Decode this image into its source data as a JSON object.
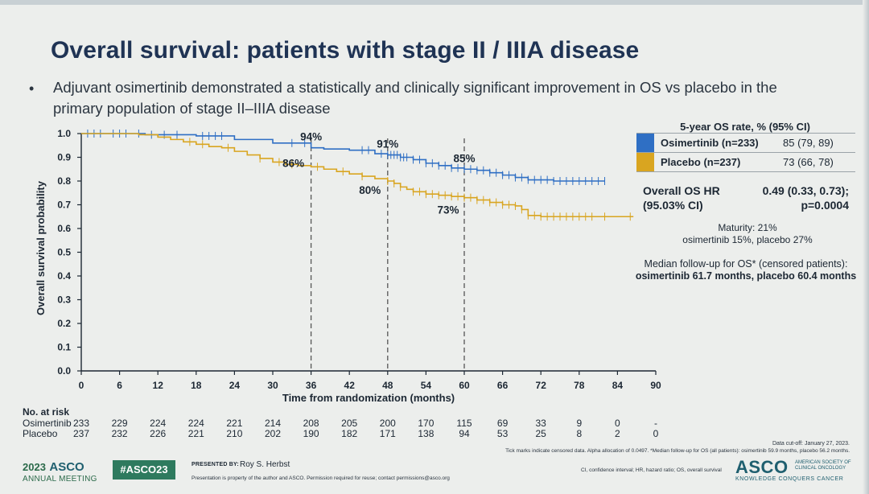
{
  "slide": {
    "title": "Overall survival: patients with stage II / IIIA disease",
    "bullet_marker": "•",
    "bullet": "Adjuvant osimertinib demonstrated a statistically and clinically significant improvement in OS vs placebo in the primary population of stage II–IIIA disease"
  },
  "colors": {
    "osimertinib": "#2f6fc4",
    "placebo": "#d9a520",
    "dash": "#555555"
  },
  "chart_data": {
    "type": "line",
    "subtype": "kaplan-meier",
    "title": "",
    "xlabel": "Time from randomization (months)",
    "ylabel": "Overall survival probability",
    "xlim": [
      0,
      90
    ],
    "ylim": [
      0,
      1.0
    ],
    "xticks": [
      0,
      6,
      12,
      18,
      24,
      30,
      36,
      42,
      48,
      54,
      60,
      66,
      72,
      78,
      84,
      90
    ],
    "yticks": [
      "0.0",
      "0.1",
      "0.2",
      "0.3",
      "0.4",
      "0.5",
      "0.6",
      "0.7",
      "0.8",
      "0.9",
      "1.0"
    ],
    "landmarks": [
      36,
      48,
      60
    ],
    "series": [
      {
        "name": "Osimertinib",
        "color": "#2f6fc4",
        "x": [
          0,
          4,
          10,
          18,
          24,
          30,
          36,
          38,
          42,
          46,
          48,
          50,
          52,
          54,
          56,
          58,
          60,
          62,
          64,
          66,
          68,
          70,
          74,
          82
        ],
        "y": [
          1.0,
          1.0,
          0.995,
          0.99,
          0.975,
          0.96,
          0.94,
          0.935,
          0.93,
          0.915,
          0.91,
          0.9,
          0.89,
          0.875,
          0.865,
          0.855,
          0.85,
          0.845,
          0.835,
          0.825,
          0.815,
          0.805,
          0.8,
          0.8
        ],
        "censor_x": [
          1,
          2,
          3,
          5,
          6,
          7,
          9,
          11,
          13,
          15,
          19,
          20,
          21,
          22,
          33,
          35,
          44,
          45,
          47,
          48,
          48.5,
          49,
          49.5,
          50,
          50.5,
          51,
          52,
          53,
          54,
          55,
          56,
          57,
          58,
          59,
          60,
          61,
          62,
          63,
          64,
          65,
          66,
          67,
          68,
          69,
          70,
          71,
          72,
          73,
          74,
          75,
          76,
          77,
          78,
          79,
          80,
          81,
          82
        ],
        "landmark_labels": [
          "94%",
          "91%",
          "85%"
        ]
      },
      {
        "name": "Placebo",
        "color": "#d9a520",
        "x": [
          0,
          6,
          9,
          12,
          14,
          16,
          18,
          20,
          22,
          24,
          26,
          28,
          30,
          32,
          34,
          36,
          38,
          40,
          42,
          44,
          46,
          48,
          49,
          50,
          51,
          52,
          54,
          56,
          58,
          60,
          62,
          64,
          66,
          68,
          69,
          70,
          72,
          78,
          86.5
        ],
        "y": [
          1.0,
          1.0,
          0.995,
          0.985,
          0.975,
          0.965,
          0.955,
          0.945,
          0.94,
          0.925,
          0.91,
          0.895,
          0.88,
          0.87,
          0.865,
          0.86,
          0.85,
          0.84,
          0.83,
          0.82,
          0.81,
          0.8,
          0.79,
          0.775,
          0.765,
          0.755,
          0.745,
          0.74,
          0.735,
          0.73,
          0.72,
          0.71,
          0.7,
          0.695,
          0.68,
          0.655,
          0.65,
          0.65,
          0.65
        ],
        "censor_x": [
          17,
          19,
          23,
          28,
          31,
          33,
          37,
          41,
          44,
          48,
          49,
          50,
          52,
          53,
          54,
          55,
          56,
          57,
          58,
          59,
          60,
          61,
          62,
          63,
          64,
          65,
          66,
          67,
          68,
          69,
          70,
          71,
          72,
          73,
          74,
          75,
          76,
          77,
          78,
          79,
          80,
          82,
          86
        ],
        "landmark_labels": [
          "86%",
          "80%",
          "73%"
        ]
      }
    ]
  },
  "legend": {
    "header": "5-year OS rate, % (95% CI)",
    "rows": [
      {
        "name": "Osimertinib (n=233)",
        "value": "85 (79, 89)",
        "color": "#2f6fc4"
      },
      {
        "name": "Placebo (n=237)",
        "value": "73 (66, 78)",
        "color": "#d9a520"
      }
    ]
  },
  "hr": {
    "label_line1": "Overall OS HR",
    "label_line2": "(95.03% CI)",
    "value_line1": "0.49 (0.33, 0.73);",
    "value_line2": "p=0.0004"
  },
  "maturity": {
    "line1": "Maturity: 21%",
    "line2": "osimertinib 15%, placebo 27%"
  },
  "followup": {
    "line1": "Median follow-up for OS* (censored patients):",
    "line2": "osimertinib 61.7 months, placebo 60.4 months"
  },
  "risk": {
    "header": "No. at risk",
    "rows": [
      {
        "label": "Osimertinib",
        "values": [
          "233",
          "229",
          "224",
          "224",
          "221",
          "214",
          "208",
          "205",
          "200",
          "170",
          "115",
          "69",
          "33",
          "9",
          "0",
          "-"
        ]
      },
      {
        "label": "Placebo",
        "values": [
          "237",
          "232",
          "226",
          "221",
          "210",
          "202",
          "190",
          "182",
          "171",
          "138",
          "94",
          "53",
          "25",
          "8",
          "2",
          "0"
        ]
      }
    ]
  },
  "footnotes": {
    "datacut": "Data cut-off: January 27, 2023.",
    "ticks": "Tick marks indicate censored data. Alpha allocation of 0.0497. *Median follow-up for OS (all patients): osimertinib 59.9 months, placebo 56.2 months.",
    "abbrev": "CI, confidence interval; HR, hazard ratio; OS, overall survival"
  },
  "footer": {
    "year": "2023",
    "asco": "ASCO",
    "meeting": "ANNUAL MEETING",
    "hashtag": "#ASCO23",
    "presented_by": "PRESENTED BY:",
    "presenter": "Roy S. Herbst",
    "property": "Presentation is property of the author and ASCO. Permission required for reuse; contact permissions@asco.org",
    "logo": "ASCO",
    "society": "AMERICAN SOCIETY OF CLINICAL ONCOLOGY",
    "tagline": "KNOWLEDGE CONQUERS CANCER"
  }
}
